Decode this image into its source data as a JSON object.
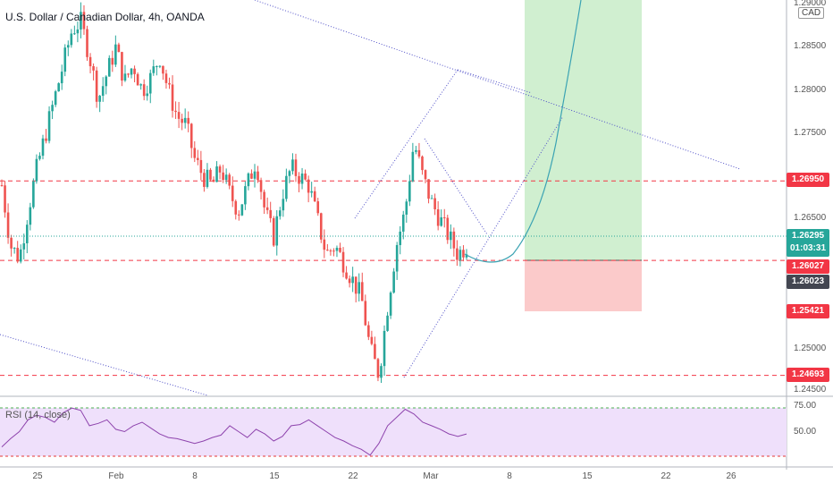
{
  "header": {
    "title": "U.S. Dollar / Canadian Dollar, 4h, OANDA",
    "currency": "CAD",
    "top_partial": "1.29000"
  },
  "price_axis": {
    "ticks": [
      "1.28500",
      "1.28000",
      "1.27500",
      "1.26500",
      "1.25000",
      "1.24500"
    ],
    "ylim": [
      1.2445,
      1.2905
    ]
  },
  "tags": [
    {
      "id": "res",
      "text": "1.26950",
      "value": 1.2695,
      "color": "#f23645"
    },
    {
      "id": "last",
      "text": "1.26295",
      "sub": "01:03:31",
      "value": 1.26295,
      "color": "#26a69a"
    },
    {
      "id": "entry",
      "text": "1.26027",
      "value": 1.26027,
      "color": "#f23645"
    },
    {
      "id": "cursor",
      "text": "1.26023",
      "value": 1.26023,
      "color": "#434651"
    },
    {
      "id": "stop",
      "text": "1.25421",
      "value": 1.25421,
      "color": "#f23645"
    },
    {
      "id": "low",
      "text": "1.24693",
      "value": 1.24693,
      "color": "#f23645"
    }
  ],
  "x_axis": {
    "ticks": [
      "25",
      "Feb",
      "8",
      "15",
      "22",
      "Mar",
      "8",
      "15",
      "22",
      "26"
    ]
  },
  "rsi": {
    "title": "RSI (14, close)",
    "ticks": [
      "75.00",
      "50.00"
    ],
    "upper": 70,
    "lower": 30
  },
  "chart_data": {
    "type": "candlestick",
    "symbol": "USDCAD",
    "interval": "4h",
    "close_path": [
      1.269,
      1.262,
      1.2605,
      1.266,
      1.271,
      1.275,
      1.279,
      1.283,
      1.287,
      1.288,
      1.284,
      1.279,
      1.282,
      1.285,
      1.281,
      1.283,
      1.28,
      1.2815,
      1.284,
      1.28,
      1.277,
      1.276,
      1.272,
      1.27,
      1.269,
      1.271,
      1.268,
      1.266,
      1.269,
      1.272,
      1.266,
      1.263,
      1.268,
      1.271,
      1.27,
      1.269,
      1.265,
      1.261,
      1.262,
      1.26,
      1.258,
      1.256,
      1.25,
      1.247,
      1.255,
      1.262,
      1.266,
      1.274,
      1.27,
      1.267,
      1.265,
      1.263,
      1.261,
      1.262
    ],
    "levels": {
      "resistance": 1.2695,
      "last": 1.26295,
      "entry": 1.26027,
      "stop": 1.25421,
      "support": 1.24693
    },
    "rsi_values": [
      37,
      44,
      50,
      60,
      64,
      62,
      58,
      66,
      70,
      68,
      55,
      57,
      60,
      52,
      50,
      55,
      58,
      53,
      48,
      45,
      44,
      42,
      40,
      42,
      45,
      47,
      55,
      50,
      45,
      52,
      48,
      42,
      46,
      55,
      56,
      60,
      55,
      50,
      45,
      42,
      38,
      35,
      30,
      40,
      55,
      62,
      69,
      65,
      58,
      55,
      52,
      48,
      46,
      48
    ],
    "rsi_range": [
      20,
      80
    ]
  }
}
